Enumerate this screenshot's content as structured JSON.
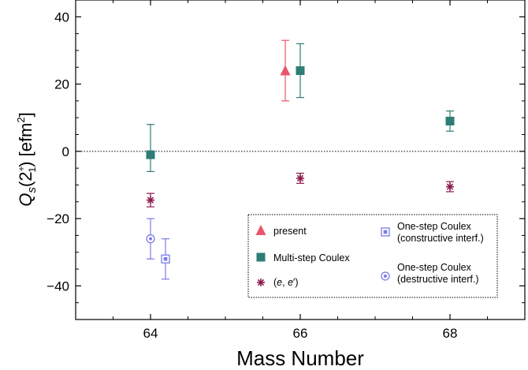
{
  "chart_data": {
    "type": "scatter",
    "xlabel": "Mass Number",
    "ylabel": {
      "symbol": "Q",
      "subscript": "s",
      "open": "(",
      "base": "2",
      "superscript": "+",
      "base_subscript": "1",
      "close": ")",
      "unit_open": " [efm",
      "unit_power": "2",
      "unit_close": "]"
    },
    "xlim": [
      63,
      69
    ],
    "ylim": [
      -50,
      45
    ],
    "x_ticks": [
      64,
      66,
      68
    ],
    "x_tick_labels": [
      "64",
      "66",
      "68"
    ],
    "y_ticks": [
      40,
      20,
      0,
      -20,
      -40
    ],
    "y_tick_labels": [
      "40",
      "20",
      "0",
      "−20",
      "−40"
    ],
    "zero_line": true,
    "legend_position": "bottom-right",
    "series": [
      {
        "name": "present",
        "marker": "triangle",
        "color": "#e8556a",
        "points": [
          {
            "x": 65.8,
            "y": 24,
            "low": 15,
            "high": 33
          }
        ]
      },
      {
        "name": "Multi-step Coulex",
        "marker": "square",
        "color": "#2e7d76",
        "points": [
          {
            "x": 64.0,
            "y": -1,
            "low": -6,
            "high": 8
          },
          {
            "x": 66.0,
            "y": 24,
            "low": 16,
            "high": 32
          },
          {
            "x": 68.0,
            "y": 9,
            "low": 6,
            "high": 12
          }
        ]
      },
      {
        "name_parts": [
          "(",
          "e",
          ", ",
          "e",
          "′)"
        ],
        "marker": "asterisk",
        "color": "#8b1a4f",
        "points": [
          {
            "x": 64.0,
            "y": -14.5,
            "low": -16.5,
            "high": -12.5
          },
          {
            "x": 66.0,
            "y": -8,
            "low": -9.5,
            "high": -6.5
          },
          {
            "x": 68.0,
            "y": -10.5,
            "low": -12,
            "high": -9
          }
        ]
      },
      {
        "name_lines": [
          "One-step Coulex",
          "(constructive interf.)"
        ],
        "marker": "square-dot",
        "color": "#7b7be6",
        "points": [
          {
            "x": 64.2,
            "y": -32,
            "low": -38,
            "high": -26
          }
        ]
      },
      {
        "name_lines": [
          "One-step Coulex",
          "(destructive interf.)"
        ],
        "marker": "circle-dot",
        "color": "#7b7be6",
        "points": [
          {
            "x": 64.0,
            "y": -26,
            "low": -32,
            "high": -20
          }
        ]
      }
    ]
  }
}
